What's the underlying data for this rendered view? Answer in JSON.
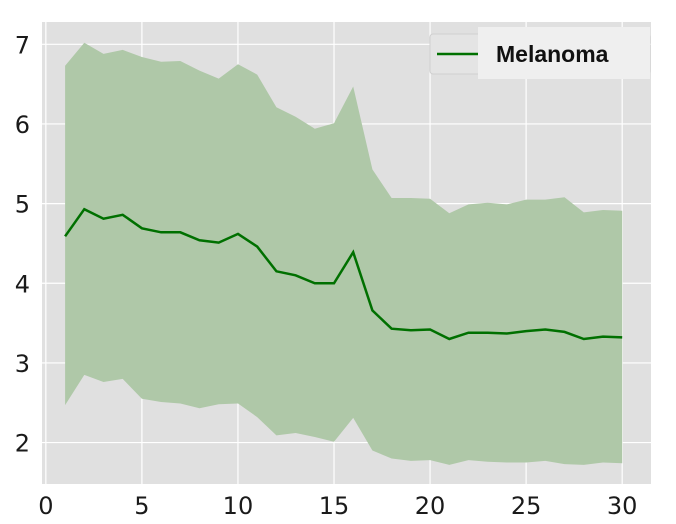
{
  "chart_data": {
    "type": "line",
    "ylabel": "",
    "xlim": [
      -0.2,
      31.5
    ],
    "ylim": [
      1.48,
      7.28
    ],
    "xticks": [
      0,
      5,
      10,
      15,
      20,
      25,
      30
    ],
    "yticks": [
      2,
      3,
      4,
      5,
      6,
      7
    ],
    "grid": true,
    "legend_position": "top-right",
    "colors": {
      "background": "#e0e0e0",
      "grid": "#ffffff",
      "line": "#007000",
      "band": "#afc8a8"
    },
    "series": [
      {
        "name": "Melanoma",
        "x": [
          1,
          2,
          3,
          4,
          5,
          6,
          7,
          8,
          9,
          10,
          11,
          12,
          13,
          14,
          15,
          16,
          17,
          18,
          19,
          20,
          21,
          22,
          23,
          24,
          25,
          26,
          27,
          28,
          29,
          30
        ],
        "y": [
          4.59,
          4.93,
          4.81,
          4.86,
          4.69,
          4.64,
          4.64,
          4.54,
          4.51,
          4.62,
          4.46,
          4.15,
          4.1,
          4.0,
          4.0,
          4.39,
          3.66,
          3.43,
          3.41,
          3.42,
          3.3,
          3.38,
          3.38,
          3.37,
          3.4,
          3.42,
          3.39,
          3.3,
          3.33,
          3.32
        ],
        "upper": [
          6.73,
          7.02,
          6.88,
          6.93,
          6.84,
          6.78,
          6.79,
          6.67,
          6.57,
          6.75,
          6.62,
          6.21,
          6.09,
          5.94,
          6.01,
          6.47,
          5.43,
          5.07,
          5.07,
          5.06,
          4.88,
          4.99,
          5.01,
          4.99,
          5.05,
          5.05,
          5.08,
          4.89,
          4.92,
          4.91
        ],
        "lower": [
          2.47,
          2.85,
          2.76,
          2.8,
          2.55,
          2.51,
          2.49,
          2.43,
          2.48,
          2.49,
          2.32,
          2.09,
          2.12,
          2.07,
          2.01,
          2.31,
          1.9,
          1.8,
          1.77,
          1.78,
          1.72,
          1.78,
          1.76,
          1.75,
          1.75,
          1.77,
          1.73,
          1.72,
          1.75,
          1.74
        ]
      }
    ]
  }
}
